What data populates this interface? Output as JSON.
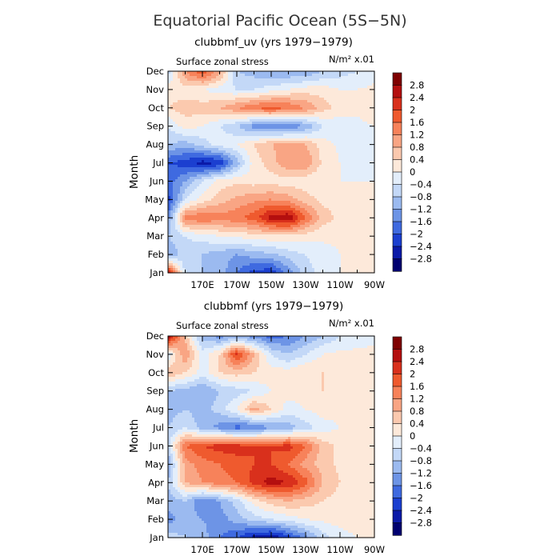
{
  "figure": {
    "title": "Equatorial Pacific Ocean (5S−5N)"
  },
  "colorbar": {
    "labels": [
      "2.8",
      "2.4",
      "2",
      "1.6",
      "1.2",
      "0.8",
      "0.4",
      "0",
      "−0.4",
      "−0.8",
      "−1.2",
      "−1.6",
      "−2",
      "−2.4",
      "−2.8"
    ],
    "colors": [
      "#7f0000",
      "#b40f0f",
      "#d9301c",
      "#ef5a2e",
      "#f7825a",
      "#f9a584",
      "#fbc9ae",
      "#fde9da",
      "#e3eefb",
      "#c3d8f7",
      "#9bbaf0",
      "#6d94e6",
      "#3f6ae0",
      "#1b3fd0",
      "#0b1aa8",
      "#000070"
    ]
  },
  "chart_data": [
    {
      "type": "heatmap",
      "subtitle": "clubbmf_uv (yrs 1979−1979)",
      "left_label": "Surface zonal stress",
      "right_label": "N/m² x.01",
      "ylabel": "Month",
      "x_ticks": [
        "170E",
        "170W",
        "150W",
        "130W",
        "110W",
        "90W"
      ],
      "y_ticks": [
        "Jan",
        "Feb",
        "Mar",
        "Apr",
        "May",
        "Jun",
        "Jul",
        "Aug",
        "Sep",
        "Oct",
        "Nov",
        "Dec"
      ],
      "xlim_lon_east": [
        150,
        270
      ],
      "x_tick_lons": [
        170,
        190,
        210,
        230,
        250,
        270
      ],
      "contour_levels": [
        -2.8,
        -2.4,
        -2,
        -1.6,
        -1.2,
        -0.8,
        -0.4,
        0,
        0.4,
        0.8,
        1.2,
        1.6,
        2,
        2.4,
        2.8
      ],
      "month_values": [
        {
          "month": "Jan",
          "values": [
            2.5,
            -0.6,
            -0.8,
            -1.0,
            -1.6,
            -2.2,
            -2.3,
            -1.4,
            -0.6,
            -0.2,
            0.0,
            0.0,
            0.1
          ]
        },
        {
          "month": "Feb",
          "values": [
            -1.2,
            -0.6,
            -0.8,
            -1.0,
            -1.2,
            -1.0,
            -0.9,
            -0.6,
            -0.4,
            -0.2,
            0.0,
            0.1,
            0.1
          ]
        },
        {
          "month": "Mar",
          "values": [
            -0.8,
            -0.4,
            -0.2,
            0.0,
            0.1,
            0.2,
            0.3,
            0.3,
            0.2,
            0.1,
            0.1,
            0.0,
            0.0
          ]
        },
        {
          "month": "Apr",
          "values": [
            -1.4,
            1.4,
            1.6,
            1.4,
            1.5,
            1.8,
            2.6,
            2.8,
            1.6,
            0.6,
            0.3,
            0.2,
            0.1
          ]
        },
        {
          "month": "May",
          "values": [
            -2.2,
            -0.4,
            0.2,
            0.6,
            0.9,
            1.1,
            1.2,
            1.0,
            0.6,
            0.3,
            0.2,
            0.1,
            0.1
          ]
        },
        {
          "month": "Jun",
          "values": [
            -1.8,
            -1.2,
            -0.4,
            0.2,
            0.3,
            0.2,
            0.2,
            0.2,
            0.1,
            0.0,
            0.0,
            0.0,
            0.0
          ]
        },
        {
          "month": "Jul",
          "values": [
            -2.0,
            -2.2,
            -2.6,
            -2.4,
            -1.0,
            0.2,
            0.6,
            1.2,
            1.2,
            0.3,
            0.0,
            -0.2,
            -0.2
          ]
        },
        {
          "month": "Aug",
          "values": [
            -0.8,
            -1.0,
            -0.6,
            -0.2,
            0.0,
            0.4,
            0.8,
            1.0,
            0.8,
            0.2,
            -0.1,
            -0.3,
            -0.2
          ]
        },
        {
          "month": "Sep",
          "values": [
            -0.4,
            0.2,
            0.0,
            -0.4,
            -0.8,
            -1.4,
            -1.6,
            -1.6,
            -1.2,
            -0.4,
            -0.2,
            -0.1,
            0.0
          ]
        },
        {
          "month": "Oct",
          "values": [
            0.4,
            0.6,
            0.6,
            0.8,
            1.2,
            1.6,
            1.8,
            1.6,
            1.2,
            0.6,
            0.2,
            0.1,
            0.2
          ]
        },
        {
          "month": "Nov",
          "values": [
            0.2,
            0.2,
            0.0,
            -0.2,
            -0.4,
            -0.4,
            -0.2,
            0.0,
            0.2,
            0.2,
            0.0,
            0.0,
            0.1
          ]
        },
        {
          "month": "Dec",
          "values": [
            -0.6,
            1.2,
            2.0,
            1.0,
            -0.8,
            -1.0,
            -1.2,
            -1.2,
            -1.2,
            -0.8,
            -0.6,
            -0.4,
            -0.2
          ]
        }
      ]
    },
    {
      "type": "heatmap",
      "subtitle": "clubbmf (yrs 1979−1979)",
      "left_label": "Surface zonal stress",
      "right_label": "N/m² x.01",
      "ylabel": "Month",
      "x_ticks": [
        "170E",
        "170W",
        "150W",
        "130W",
        "110W",
        "90W"
      ],
      "y_ticks": [
        "Jan",
        "Feb",
        "Mar",
        "Apr",
        "May",
        "Jun",
        "Jul",
        "Aug",
        "Sep",
        "Oct",
        "Nov",
        "Dec"
      ],
      "xlim_lon_east": [
        150,
        270
      ],
      "x_tick_lons": [
        170,
        190,
        210,
        230,
        250,
        270
      ],
      "contour_levels": [
        -2.8,
        -2.4,
        -2,
        -1.6,
        -1.2,
        -0.8,
        -0.4,
        0,
        0.4,
        0.8,
        1.2,
        1.6,
        2,
        2.4,
        2.8
      ],
      "month_values": [
        {
          "month": "Jan",
          "values": [
            -0.6,
            -0.8,
            -1.0,
            -1.6,
            -2.0,
            -2.6,
            -2.8,
            -2.2,
            -1.4,
            -0.6,
            -0.2,
            0.0,
            0.0
          ]
        },
        {
          "month": "Feb",
          "values": [
            -1.4,
            -1.0,
            -1.2,
            -1.4,
            -1.0,
            -0.6,
            -0.4,
            -0.2,
            0.0,
            0.1,
            0.2,
            0.2,
            0.2
          ]
        },
        {
          "month": "Mar",
          "values": [
            -1.0,
            -0.8,
            -1.6,
            -1.2,
            -0.6,
            0.2,
            0.6,
            0.8,
            0.6,
            0.4,
            0.2,
            0.2,
            0.1
          ]
        },
        {
          "month": "Apr",
          "values": [
            -0.8,
            0.8,
            1.2,
            1.4,
            1.6,
            2.2,
            2.6,
            2.4,
            1.8,
            0.8,
            0.4,
            0.2,
            0.1
          ]
        },
        {
          "month": "May",
          "values": [
            -1.2,
            1.0,
            1.4,
            1.6,
            1.8,
            2.0,
            2.0,
            1.6,
            1.0,
            0.6,
            0.3,
            0.2,
            0.1
          ]
        },
        {
          "month": "Jun",
          "values": [
            -0.6,
            1.6,
            2.0,
            2.2,
            2.2,
            2.0,
            2.0,
            2.2,
            1.6,
            0.6,
            0.3,
            0.2,
            0.1
          ]
        },
        {
          "month": "Jul",
          "values": [
            -0.8,
            -0.4,
            -1.0,
            -1.4,
            -1.8,
            -1.6,
            -1.2,
            -1.0,
            -0.6,
            -0.2,
            0.0,
            0.0,
            0.0
          ]
        },
        {
          "month": "Aug",
          "values": [
            -1.0,
            -0.8,
            -1.0,
            -0.6,
            0.0,
            1.0,
            0.4,
            -0.2,
            0.0,
            0.2,
            0.1,
            0.0,
            0.0
          ]
        },
        {
          "month": "Sep",
          "values": [
            -0.8,
            -1.0,
            -1.2,
            -0.8,
            -0.6,
            -0.4,
            0.0,
            0.2,
            0.2,
            0.4,
            0.2,
            0.1,
            0.0
          ]
        },
        {
          "month": "Oct",
          "values": [
            0.8,
            0.4,
            -0.2,
            0.4,
            0.6,
            0.4,
            0.2,
            0.2,
            0.4,
            0.4,
            0.2,
            0.1,
            0.1
          ]
        },
        {
          "month": "Nov",
          "values": [
            -0.4,
            1.2,
            -0.2,
            0.4,
            2.2,
            0.8,
            -0.4,
            -0.8,
            -0.4,
            0.0,
            0.1,
            0.1,
            0.1
          ]
        },
        {
          "month": "Dec",
          "values": [
            2.8,
            0.6,
            -1.0,
            -1.4,
            -1.2,
            -1.4,
            -1.8,
            -1.6,
            -1.2,
            -0.8,
            -0.4,
            -0.2,
            -0.1
          ]
        }
      ]
    }
  ]
}
